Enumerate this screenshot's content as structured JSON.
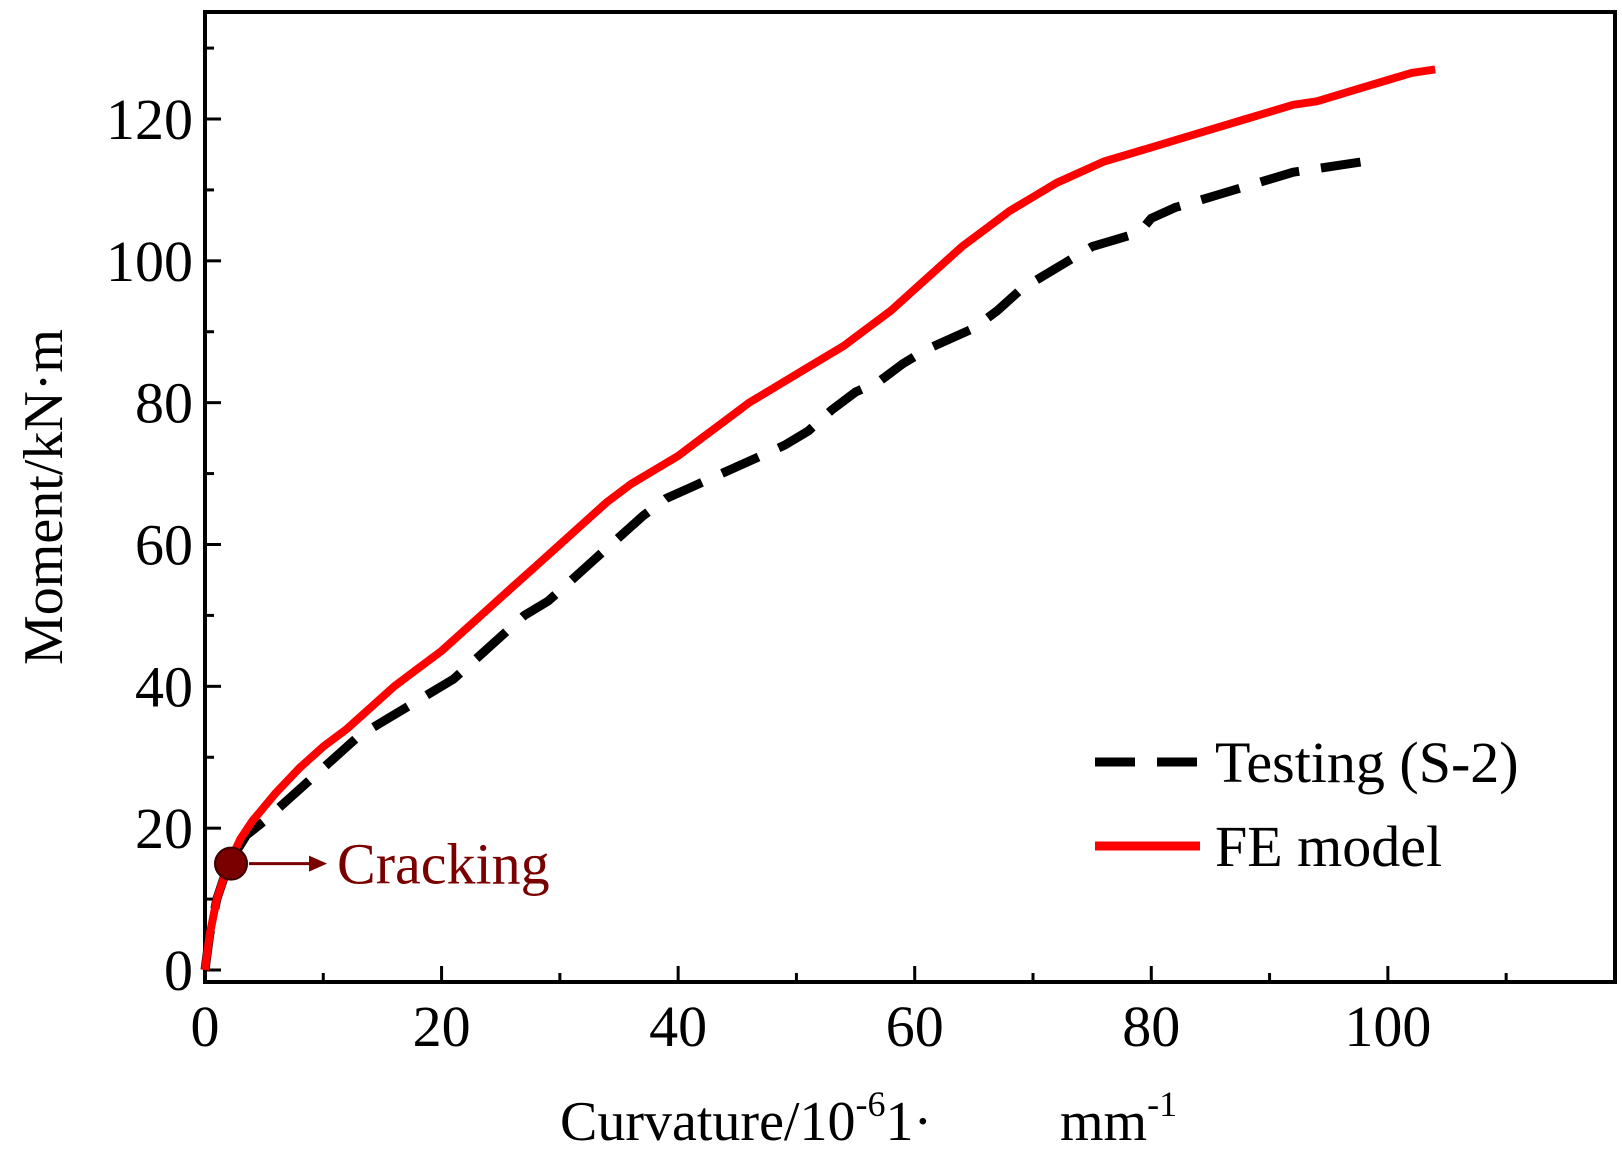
{
  "chart_data": {
    "type": "line",
    "title": "",
    "xlabel": {
      "main": "Curvature/10",
      "exp1": "-6",
      "unit": "1·",
      "unit2": "mm",
      "exp2": "-1"
    },
    "ylabel": "Moment/kN·m",
    "xlim": [
      0,
      115
    ],
    "ylim": [
      0,
      135
    ],
    "x_ticks": [
      0,
      20,
      40,
      60,
      80,
      100
    ],
    "x_tick_labels": [
      "0",
      "20",
      "40",
      "60",
      "80",
      "100"
    ],
    "x_minor_ticks": [
      10,
      30,
      50,
      70,
      90,
      110
    ],
    "y_ticks": [
      0,
      20,
      40,
      60,
      80,
      100,
      120
    ],
    "y_tick_labels": [
      "0",
      "20",
      "40",
      "60",
      "80",
      "100",
      "120"
    ],
    "y_minor_ticks": [
      10,
      30,
      50,
      70,
      90,
      110,
      130
    ],
    "grid": false,
    "legend_position": "bottom-right",
    "series": [
      {
        "name": "Testing (S-2)",
        "style": "dashed",
        "color": "#000000",
        "points": [
          [
            0,
            0
          ],
          [
            0.4,
            5
          ],
          [
            1,
            10
          ],
          [
            2,
            15
          ],
          [
            3.5,
            19
          ],
          [
            5,
            21
          ],
          [
            7,
            24
          ],
          [
            9,
            27
          ],
          [
            11,
            30
          ],
          [
            13,
            33
          ],
          [
            15,
            35
          ],
          [
            17,
            37
          ],
          [
            19,
            39
          ],
          [
            21,
            41
          ],
          [
            23,
            44
          ],
          [
            25,
            47
          ],
          [
            27,
            50
          ],
          [
            29,
            52
          ],
          [
            31,
            55
          ],
          [
            33,
            58
          ],
          [
            35,
            61
          ],
          [
            37,
            64
          ],
          [
            39,
            66.5
          ],
          [
            41,
            68
          ],
          [
            43,
            69.5
          ],
          [
            45,
            71
          ],
          [
            47,
            72.5
          ],
          [
            49,
            74
          ],
          [
            51,
            76
          ],
          [
            53,
            79
          ],
          [
            55,
            81.5
          ],
          [
            57,
            83
          ],
          [
            59,
            85.5
          ],
          [
            61,
            87.5
          ],
          [
            63,
            89
          ],
          [
            65,
            90.5
          ],
          [
            67,
            93
          ],
          [
            69,
            96
          ],
          [
            71,
            98
          ],
          [
            73,
            100
          ],
          [
            75,
            102
          ],
          [
            77,
            103
          ],
          [
            79,
            104
          ],
          [
            80,
            106
          ],
          [
            82,
            107.5
          ],
          [
            84,
            108.5
          ],
          [
            86,
            109.5
          ],
          [
            88,
            110.5
          ],
          [
            90,
            111.5
          ],
          [
            92,
            112.5
          ],
          [
            94,
            113
          ],
          [
            96,
            113.5
          ],
          [
            98,
            114
          ]
        ]
      },
      {
        "name": "FE model",
        "style": "solid",
        "color": "#ff0000",
        "points": [
          [
            0,
            0
          ],
          [
            0.4,
            5
          ],
          [
            1,
            10
          ],
          [
            2,
            15
          ],
          [
            3,
            18.5
          ],
          [
            4,
            21
          ],
          [
            6,
            25
          ],
          [
            8,
            28.5
          ],
          [
            10,
            31.5
          ],
          [
            12,
            34
          ],
          [
            14,
            37
          ],
          [
            16,
            40
          ],
          [
            18,
            42.5
          ],
          [
            20,
            45
          ],
          [
            22,
            48
          ],
          [
            24,
            51
          ],
          [
            26,
            54
          ],
          [
            28,
            57
          ],
          [
            30,
            60
          ],
          [
            32,
            63
          ],
          [
            34,
            66
          ],
          [
            36,
            68.5
          ],
          [
            38,
            70.5
          ],
          [
            40,
            72.5
          ],
          [
            42,
            75
          ],
          [
            44,
            77.5
          ],
          [
            46,
            80
          ],
          [
            48,
            82
          ],
          [
            50,
            84
          ],
          [
            52,
            86
          ],
          [
            54,
            88
          ],
          [
            56,
            90.5
          ],
          [
            58,
            93
          ],
          [
            60,
            96
          ],
          [
            62,
            99
          ],
          [
            64,
            102
          ],
          [
            66,
            104.5
          ],
          [
            68,
            107
          ],
          [
            70,
            109
          ],
          [
            72,
            111
          ],
          [
            74,
            112.5
          ],
          [
            76,
            114
          ],
          [
            78,
            115
          ],
          [
            80,
            116
          ],
          [
            82,
            117
          ],
          [
            84,
            118
          ],
          [
            86,
            119
          ],
          [
            88,
            120
          ],
          [
            90,
            121
          ],
          [
            92,
            122
          ],
          [
            94,
            122.5
          ],
          [
            96,
            123.5
          ],
          [
            98,
            124.5
          ],
          [
            100,
            125.5
          ],
          [
            102,
            126.5
          ],
          [
            104,
            127
          ]
        ]
      }
    ],
    "annotation": {
      "label": "Cracking",
      "x": 2.2,
      "y": 15,
      "color": "#7a0000"
    }
  }
}
